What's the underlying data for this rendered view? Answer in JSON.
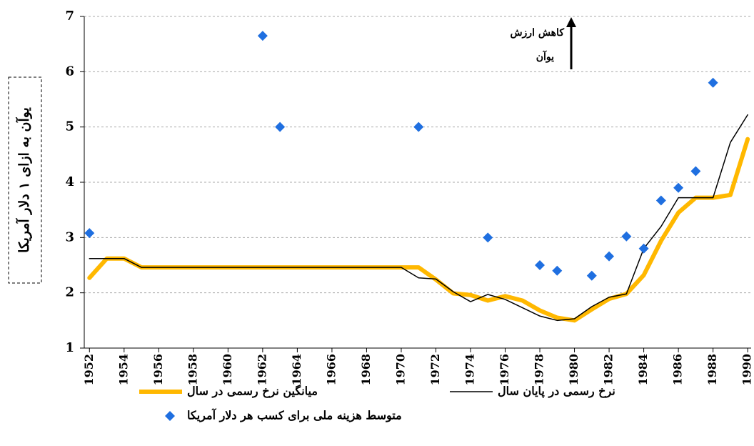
{
  "chart_data": {
    "type": "line",
    "ylabel": "یوآن به ازای ۱ دلار آمریکا",
    "annotation": [
      "کاهش ارزش",
      "یوآن"
    ],
    "xlim": [
      1951.7,
      1990.2
    ],
    "xticks": [
      1952,
      1954,
      1956,
      1958,
      1960,
      1962,
      1964,
      1966,
      1968,
      1970,
      1972,
      1974,
      1976,
      1978,
      1980,
      1982,
      1984,
      1986,
      1988,
      1990
    ],
    "ylim": [
      1,
      7
    ],
    "yticks": [
      1,
      2,
      3,
      4,
      5,
      6,
      7
    ],
    "grid": true,
    "series": [
      {
        "name": "میانگین نرخ رسمی در سال",
        "color": "#ffb800",
        "kind": "line",
        "x": [
          1952,
          1953,
          1954,
          1955,
          1956,
          1957,
          1958,
          1959,
          1960,
          1961,
          1962,
          1963,
          1964,
          1965,
          1966,
          1967,
          1968,
          1969,
          1970,
          1971,
          1972,
          1973,
          1974,
          1975,
          1976,
          1977,
          1978,
          1979,
          1980,
          1981,
          1982,
          1983,
          1984,
          1985,
          1986,
          1987,
          1988,
          1989,
          1990
        ],
        "values": [
          2.27,
          2.62,
          2.62,
          2.46,
          2.46,
          2.46,
          2.46,
          2.46,
          2.46,
          2.46,
          2.46,
          2.46,
          2.46,
          2.46,
          2.46,
          2.46,
          2.46,
          2.46,
          2.46,
          2.46,
          2.24,
          1.99,
          1.96,
          1.86,
          1.94,
          1.86,
          1.68,
          1.55,
          1.5,
          1.7,
          1.89,
          1.98,
          2.32,
          2.94,
          3.45,
          3.72,
          3.72,
          3.77,
          4.78
        ]
      },
      {
        "name": "نرخ رسمی در پایان سال",
        "color": "#000000",
        "kind": "line",
        "x": [
          1952,
          1953,
          1954,
          1955,
          1956,
          1957,
          1958,
          1959,
          1960,
          1961,
          1962,
          1963,
          1964,
          1965,
          1966,
          1967,
          1968,
          1969,
          1970,
          1971,
          1972,
          1973,
          1974,
          1975,
          1976,
          1977,
          1978,
          1979,
          1980,
          1981,
          1982,
          1983,
          1984,
          1985,
          1986,
          1987,
          1988,
          1989,
          1990
        ],
        "values": [
          2.62,
          2.62,
          2.62,
          2.46,
          2.46,
          2.46,
          2.46,
          2.46,
          2.46,
          2.46,
          2.46,
          2.46,
          2.46,
          2.46,
          2.46,
          2.46,
          2.46,
          2.46,
          2.46,
          2.27,
          2.25,
          2.02,
          1.84,
          1.97,
          1.88,
          1.73,
          1.58,
          1.5,
          1.53,
          1.75,
          1.92,
          1.98,
          2.8,
          3.2,
          3.72,
          3.72,
          3.72,
          4.72,
          5.22
        ]
      },
      {
        "name": "متوسط هزینه ملی برای کسب هر دلار آمریکا",
        "color": "#1f6fe0",
        "kind": "scatter",
        "x": [
          1952,
          1962,
          1963,
          1971,
          1975,
          1978,
          1979,
          1981,
          1982,
          1983,
          1984,
          1985,
          1986,
          1987,
          1988
        ],
        "values": [
          3.08,
          6.65,
          5.0,
          5.0,
          3.0,
          2.5,
          2.4,
          2.31,
          2.66,
          3.02,
          2.8,
          3.67,
          3.9,
          4.2,
          5.8
        ]
      }
    ]
  }
}
